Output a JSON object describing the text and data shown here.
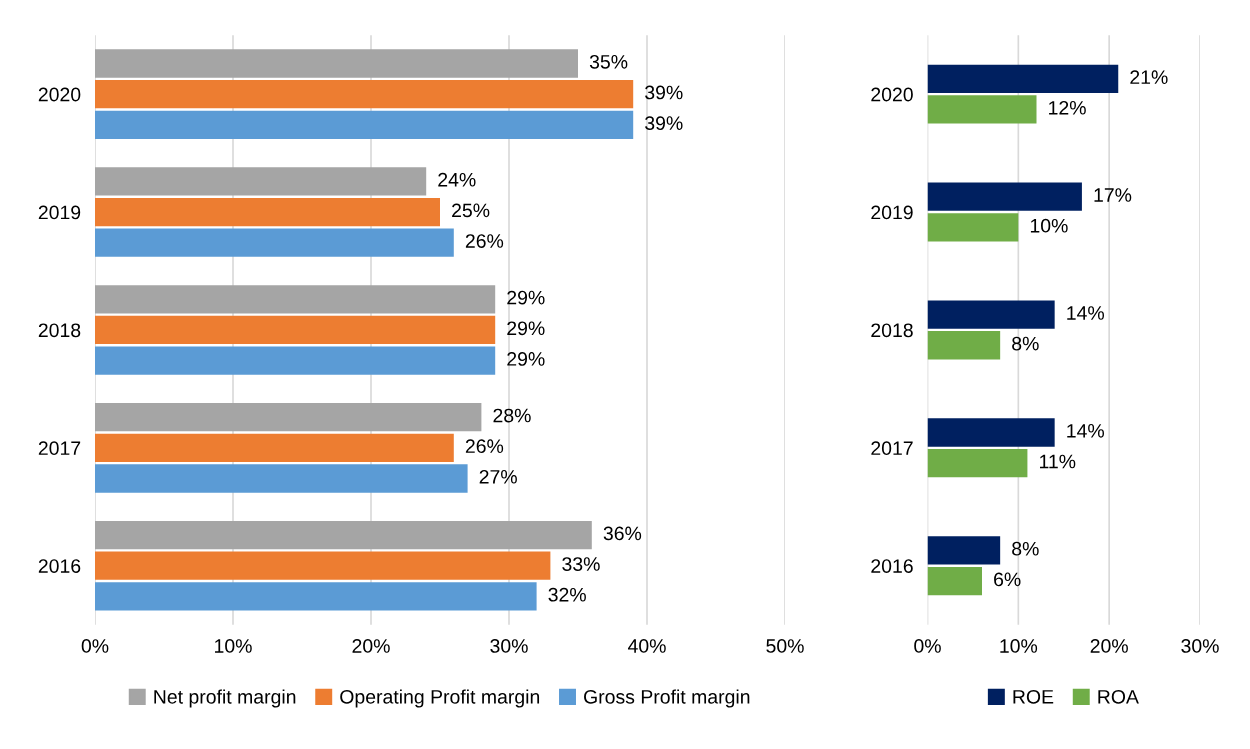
{
  "chart_data": [
    {
      "type": "bar",
      "orientation": "horizontal",
      "categories": [
        "2020",
        "2019",
        "2018",
        "2017",
        "2016"
      ],
      "series": [
        {
          "name": "Net profit margin",
          "color": "#a5a5a5",
          "values": [
            35,
            24,
            29,
            28,
            36
          ],
          "value_labels": [
            "35%",
            "24%",
            "29%",
            "28%",
            "36%"
          ]
        },
        {
          "name": "Operating Profit margin",
          "color": "#ed7d31",
          "values": [
            39,
            25,
            29,
            26,
            33
          ],
          "value_labels": [
            "39%",
            "25%",
            "29%",
            "26%",
            "33%"
          ]
        },
        {
          "name": "Gross Profit margin",
          "color": "#5b9bd5",
          "values": [
            39,
            26,
            29,
            27,
            32
          ],
          "value_labels": [
            "39%",
            "26%",
            "29%",
            "27%",
            "32%"
          ]
        }
      ],
      "xlim": [
        0,
        50
      ],
      "xticks": [
        {
          "value": 0,
          "label": "0%"
        },
        {
          "value": 10,
          "label": "10%"
        },
        {
          "value": 20,
          "label": "20%"
        },
        {
          "value": 30,
          "label": "30%"
        },
        {
          "value": 40,
          "label": "40%"
        },
        {
          "value": 50,
          "label": "50%"
        }
      ],
      "grid": "x",
      "legend": "bottom"
    },
    {
      "type": "bar",
      "orientation": "horizontal",
      "categories": [
        "2020",
        "2019",
        "2018",
        "2017",
        "2016"
      ],
      "series": [
        {
          "name": "ROE",
          "color": "#002060",
          "values": [
            21,
            17,
            14,
            14,
            8
          ],
          "value_labels": [
            "21%",
            "17%",
            "14%",
            "14%",
            "8%"
          ]
        },
        {
          "name": "ROA",
          "color": "#70ad47",
          "values": [
            12,
            10,
            8,
            11,
            6
          ],
          "value_labels": [
            "12%",
            "10%",
            "8%",
            "11%",
            "6%"
          ]
        }
      ],
      "xlim": [
        0,
        30
      ],
      "xticks": [
        {
          "value": 0,
          "label": "0%"
        },
        {
          "value": 10,
          "label": "10%"
        },
        {
          "value": 20,
          "label": "20%"
        },
        {
          "value": 30,
          "label": "30%"
        }
      ],
      "grid": "x",
      "legend": "bottom"
    }
  ]
}
